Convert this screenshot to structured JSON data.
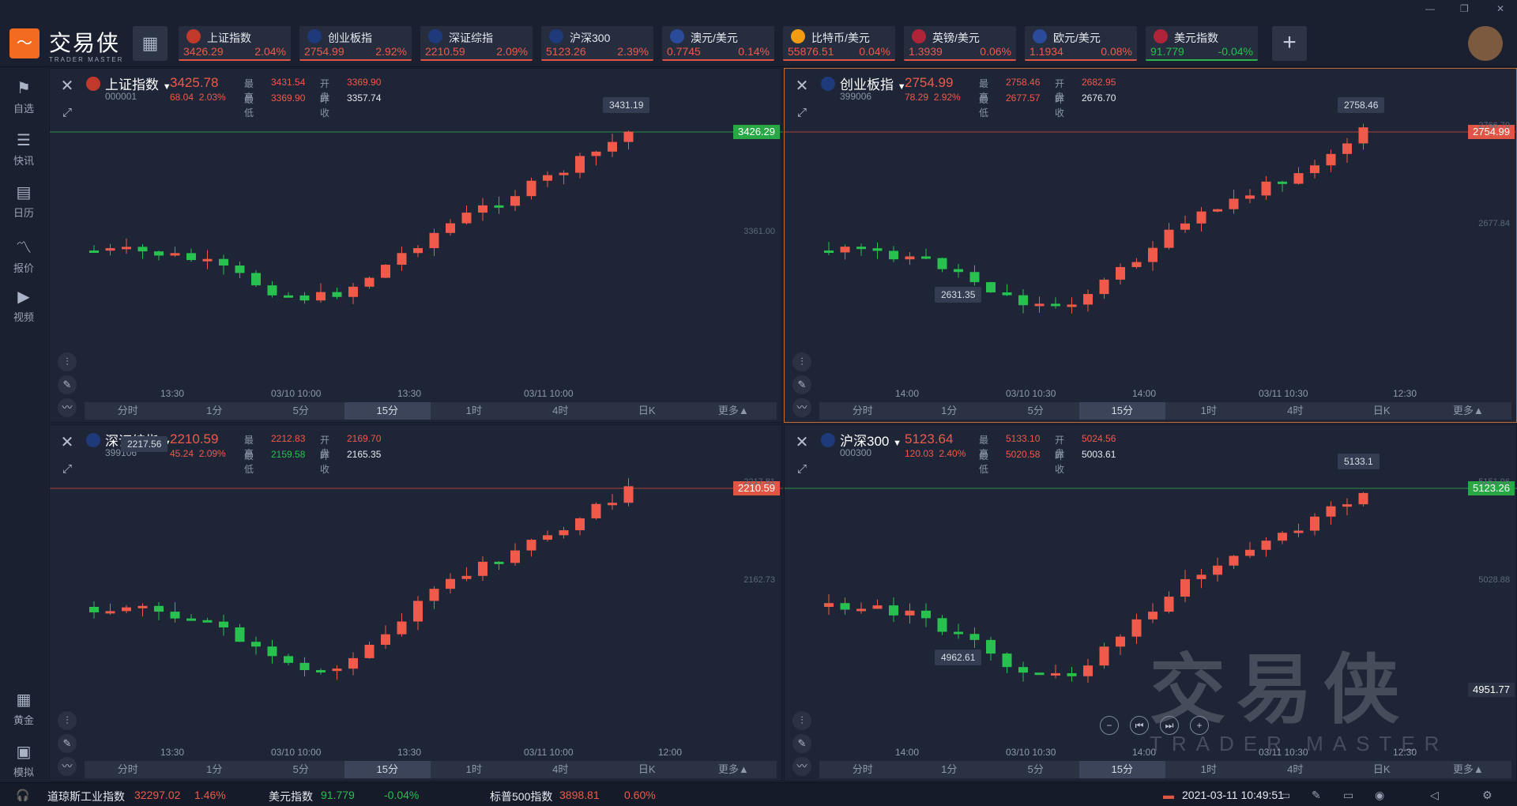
{
  "app": {
    "name_cn": "交易侠",
    "name_en": "TRADER MASTER"
  },
  "window_controls": {
    "minimize": "—",
    "restore": "❐",
    "close": "✕"
  },
  "tickers": [
    {
      "name": "上证指数",
      "price": "3426.29",
      "change": "2.04%",
      "dir": "up",
      "icon": "sh-exchange-icon"
    },
    {
      "name": "创业板指",
      "price": "2754.99",
      "change": "2.92%",
      "dir": "up",
      "icon": "sz-exchange-icon"
    },
    {
      "name": "深证综指",
      "price": "2210.59",
      "change": "2.09%",
      "dir": "up",
      "icon": "bar-chart-icon"
    },
    {
      "name": "沪深300",
      "price": "5123.26",
      "change": "2.39%",
      "dir": "up",
      "icon": "bar-chart-icon"
    },
    {
      "name": "澳元/美元",
      "price": "0.7745",
      "change": "0.14%",
      "dir": "up",
      "icon": "au-flag-icon"
    },
    {
      "name": "比特币/美元",
      "price": "55876.51",
      "change": "0.04%",
      "dir": "up",
      "icon": "bitcoin-icon"
    },
    {
      "name": "英镑/美元",
      "price": "1.3939",
      "change": "0.06%",
      "dir": "up",
      "icon": "uk-flag-icon"
    },
    {
      "name": "欧元/美元",
      "price": "1.1934",
      "change": "0.08%",
      "dir": "up",
      "icon": "eu-flag-icon"
    },
    {
      "name": "美元指数",
      "price": "91.779",
      "change": "-0.04%",
      "dir": "down",
      "icon": "us-flag-icon"
    }
  ],
  "sidebar": {
    "items": [
      {
        "label": "自选",
        "icon": "bookmark-icon"
      },
      {
        "label": "快讯",
        "icon": "news-icon"
      },
      {
        "label": "日历",
        "icon": "calendar-icon"
      },
      {
        "label": "报价",
        "icon": "line-chart-icon"
      },
      {
        "label": "视频",
        "icon": "video-icon"
      }
    ],
    "bottom": [
      {
        "label": "黄金",
        "icon": "gold-icon"
      },
      {
        "label": "模拟",
        "icon": "wallet-icon"
      }
    ]
  },
  "labels": {
    "high": "最高",
    "low": "最低",
    "open": "开盘",
    "prev": "昨收"
  },
  "periods": [
    "分时",
    "1分",
    "5分",
    "15分",
    "1时",
    "4时",
    "日K",
    "更多▲"
  ],
  "active_period": "15分",
  "panels": [
    {
      "name": "上证指数",
      "code": "000001",
      "price": "3425.78",
      "chg": "68.04",
      "pct": "2.03%",
      "dir": "up",
      "high": "3431.54",
      "open": "3369.90",
      "low": "3369.90",
      "prev": "3357.74",
      "low_color": "up",
      "last_tag": "3426.29",
      "last_dir": "dn",
      "hi_mark": "3431.19",
      "lo_mark": "",
      "y_ticks": [
        "3361.00"
      ],
      "x_ticks": [
        "13:30",
        "03/10 10:00",
        "13:30",
        "03/11 10:00"
      ]
    },
    {
      "name": "创业板指",
      "code": "399006",
      "price": "2754.99",
      "chg": "78.29",
      "pct": "2.92%",
      "dir": "up",
      "high": "2758.46",
      "open": "2682.95",
      "low": "2677.57",
      "prev": "2676.70",
      "low_color": "up",
      "last_tag": "2754.99",
      "last_dir": "up",
      "hi_mark": "2758.46",
      "lo_mark": "2631.35",
      "y_ticks": [
        "2766.70",
        "2677.84"
      ],
      "x_ticks": [
        "14:00",
        "03/10 10:30",
        "14:00",
        "03/11 10:30",
        "12:30"
      ]
    },
    {
      "name": "深证综指",
      "code": "399106",
      "price": "2210.59",
      "chg": "45.24",
      "pct": "2.09%",
      "dir": "up",
      "high": "2212.83",
      "open": "2169.70",
      "low": "2159.58",
      "prev": "2165.35",
      "low_color": "dn",
      "last_tag": "2210.59",
      "last_dir": "up",
      "hi_mark": "2217.56",
      "lo_mark": "",
      "y_ticks": [
        "2217.81",
        "2162.73"
      ],
      "x_ticks": [
        "13:30",
        "03/10 10:00",
        "13:30",
        "03/11 10:00",
        "12:00"
      ]
    },
    {
      "name": "沪深300",
      "code": "000300",
      "price": "5123.64",
      "chg": "120.03",
      "pct": "2.40%",
      "dir": "up",
      "high": "5133.10",
      "open": "5024.56",
      "low": "5020.58",
      "prev": "5003.61",
      "low_color": "up",
      "last_tag": "5123.26",
      "last_dir": "dn",
      "hi_mark": "5133.1",
      "lo_mark": "4962.61",
      "extra_tag": "4951.77",
      "y_ticks": [
        "5151.96",
        "5028.88"
      ],
      "x_ticks": [
        "14:00",
        "03/10 10:30",
        "14:00",
        "03/11 10:30",
        "12:30"
      ]
    }
  ],
  "statusbar": {
    "items": [
      {
        "name": "道琼斯工业指数",
        "price": "32297.02",
        "pct": "1.46%",
        "dir": "up"
      },
      {
        "name": "美元指数",
        "price": "91.779",
        "pct": "-0.04%",
        "dir": "down"
      },
      {
        "name": "标普500指数",
        "price": "3898.81",
        "pct": "0.60%",
        "dir": "up"
      }
    ],
    "datetime": "2021-03-11  10:49:51"
  },
  "colors": {
    "up": "#ef5a4a",
    "down": "#28c04e",
    "accent": "#f26b21"
  }
}
